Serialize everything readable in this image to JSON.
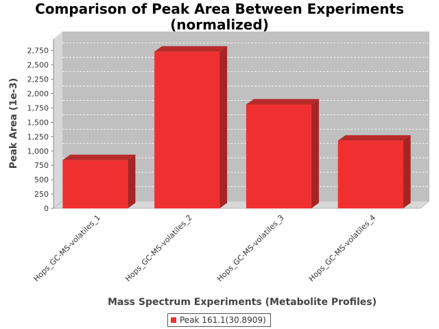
{
  "chart_data": {
    "type": "bar",
    "title": [
      "Comparison of Peak Area Between Experiments",
      "(normalized)"
    ],
    "xlabel": "Mass Spectrum Experiments (Metabolite Profiles)",
    "ylabel": "Peak Area (1e-3)",
    "categories": [
      "Hops_GC-MS-volatiles_1",
      "Hops_GC-MS-volatiles_2",
      "Hops_GC-MS-volatiles_3",
      "Hops_GC-MS-volatiles_4"
    ],
    "series": [
      {
        "name": "Peak 161.1(30.8909)",
        "values": [
          840,
          2730,
          1810,
          1180
        ],
        "color": "#f03030"
      }
    ],
    "yticks": [
      0,
      250,
      500,
      750,
      1000,
      1250,
      1500,
      1750,
      2000,
      2250,
      2500,
      2750
    ],
    "ytick_labels": [
      "0",
      "250",
      "500",
      "750",
      "1,000",
      "1,250",
      "1,500",
      "1,750",
      "2,000",
      "2,250",
      "2,500",
      "2,750"
    ],
    "ylim": [
      0,
      2950
    ],
    "grid": true,
    "legend_position": "bottom",
    "style": "3d",
    "colors": {
      "plot_background": "#c0c0c0",
      "plot_side": "#d8d8d8",
      "bar_front": "#f03030",
      "bar_top": "#b82a2a",
      "bar_side": "#a52525"
    }
  }
}
